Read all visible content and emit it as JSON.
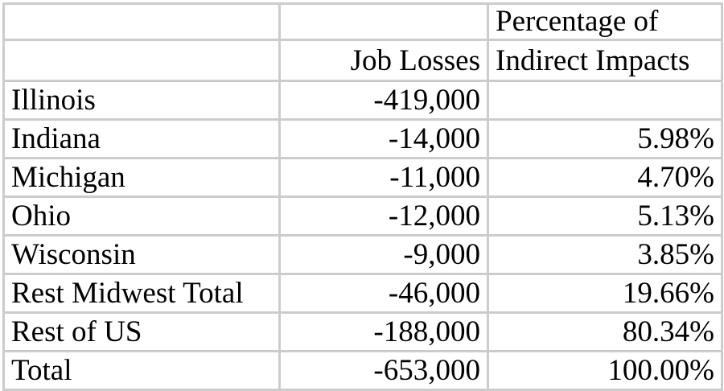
{
  "table": {
    "header": {
      "col2_label": "Job Losses",
      "col3_label_line1": "Percentage of",
      "col3_label_line2": "Indirect Impacts"
    },
    "rows": [
      {
        "region": "Illinois",
        "job_losses": "-419,000",
        "pct_indirect": ""
      },
      {
        "region": "Indiana",
        "job_losses": "-14,000",
        "pct_indirect": "5.98%"
      },
      {
        "region": "Michigan",
        "job_losses": "-11,000",
        "pct_indirect": "4.70%"
      },
      {
        "region": "Ohio",
        "job_losses": "-12,000",
        "pct_indirect": "5.13%"
      },
      {
        "region": "Wisconsin",
        "job_losses": "-9,000",
        "pct_indirect": "3.85%"
      },
      {
        "region": "Rest Midwest Total",
        "job_losses": "-46,000",
        "pct_indirect": "19.66%"
      },
      {
        "region": "Rest of US",
        "job_losses": "-188,000",
        "pct_indirect": "80.34%"
      },
      {
        "region": "Total",
        "job_losses": "-653,000",
        "pct_indirect": "100.00%"
      }
    ]
  }
}
